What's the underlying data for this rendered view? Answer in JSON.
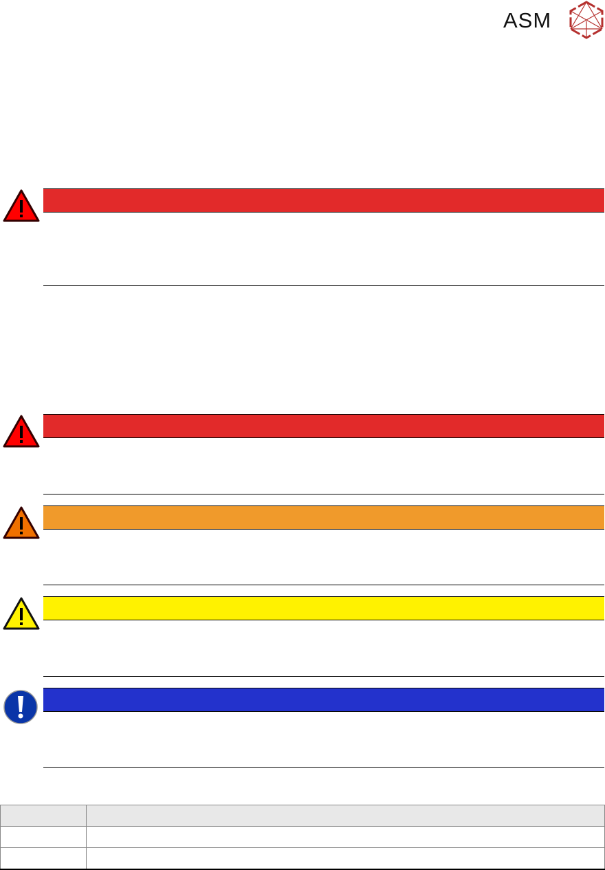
{
  "header": {
    "logo_text": "ASM",
    "logo_color": "#b5302e"
  },
  "notices": [
    {
      "level_color": "#e22a2a",
      "icon": "danger-triangle-icon"
    },
    {
      "level_color": "#e22a2a",
      "icon": "danger-triangle-icon"
    },
    {
      "level_color": "#f09a2b",
      "icon": "warning-triangle-icon"
    },
    {
      "level_color": "#fff200",
      "icon": "caution-triangle-icon"
    },
    {
      "level_color": "#2332cc",
      "icon": "notice-exclamation-icon"
    }
  ],
  "table": {
    "header_bg": "#e8e8e8",
    "rows": [
      [
        "",
        ""
      ],
      [
        "",
        ""
      ],
      [
        "",
        ""
      ]
    ]
  }
}
